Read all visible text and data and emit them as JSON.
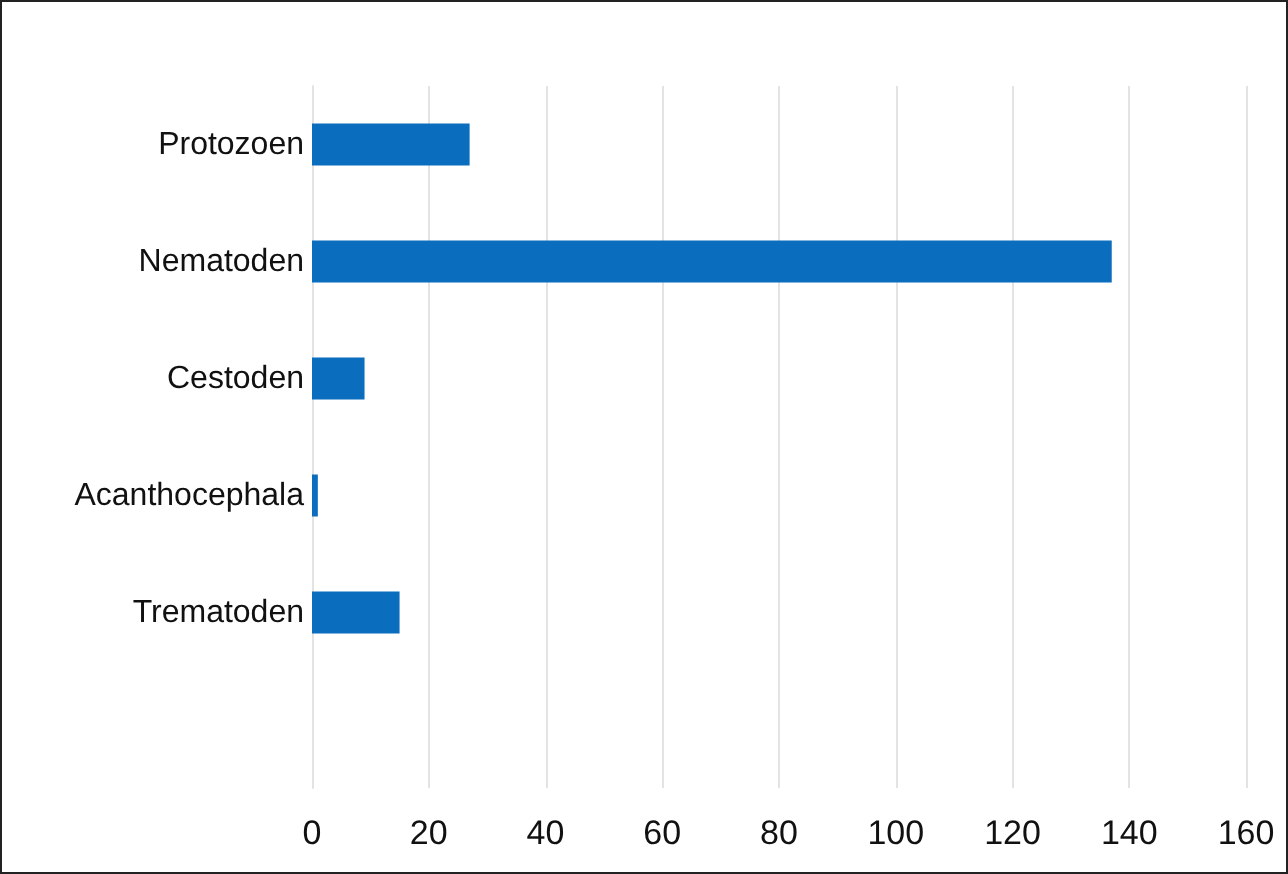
{
  "chart_data": {
    "type": "bar",
    "orientation": "horizontal",
    "categories": [
      "Protozoen",
      "Nematoden",
      "Cestoden",
      "Acanthocephala",
      "Trematoden"
    ],
    "values": [
      27,
      137,
      9,
      1,
      15
    ],
    "color": "#0b6dbd",
    "xlim": [
      0,
      160
    ],
    "xticks": [
      0,
      20,
      40,
      60,
      80,
      100,
      120,
      140,
      160
    ],
    "grid": "x"
  }
}
